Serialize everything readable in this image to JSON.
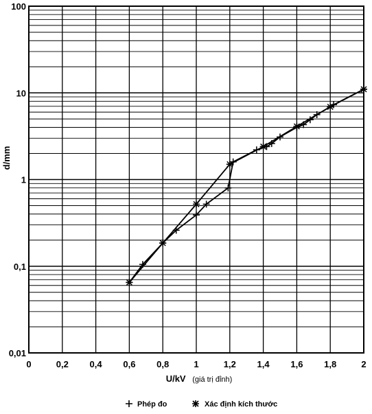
{
  "chart_data": {
    "type": "line",
    "title": "",
    "xlabel": "U/kV",
    "xlabel_note": "(giá trị đỉnh)",
    "ylabel": "d/mm",
    "xlim": [
      0,
      2
    ],
    "ylim": [
      0.01,
      100
    ],
    "y_scale": "log",
    "grid": true,
    "x_ticks": [
      "0",
      "0,2",
      "0,4",
      "0,6",
      "0,8",
      "1",
      "1,2",
      "1,4",
      "1,6",
      "1,8",
      "2"
    ],
    "y_ticks": [
      "0,01",
      "0,1",
      "1",
      "10",
      "100"
    ],
    "legend": [
      {
        "name": "Phép đo",
        "marker": "plus"
      },
      {
        "name": "Xác định kích thước",
        "marker": "asterisk"
      }
    ],
    "series": [
      {
        "name": "Phép đo",
        "marker": "plus",
        "x": [
          0.6,
          0.68,
          0.8,
          0.88,
          1.0,
          1.06,
          1.19,
          1.22,
          1.36,
          1.42,
          1.45,
          1.5,
          1.6,
          1.64,
          1.68,
          1.72,
          1.82,
          2.0
        ],
        "y": [
          0.065,
          0.105,
          0.185,
          0.26,
          0.39,
          0.52,
          0.8,
          1.6,
          2.2,
          2.4,
          2.6,
          3.1,
          4.0,
          4.3,
          4.9,
          5.6,
          7.3,
          11
        ]
      },
      {
        "name": "Xác định kích thước",
        "marker": "asterisk",
        "x": [
          0.6,
          0.8,
          1.0,
          1.2,
          1.4,
          1.6,
          1.8,
          2.0
        ],
        "y": [
          0.065,
          0.185,
          0.52,
          1.5,
          2.4,
          4.1,
          6.9,
          11
        ]
      }
    ]
  }
}
